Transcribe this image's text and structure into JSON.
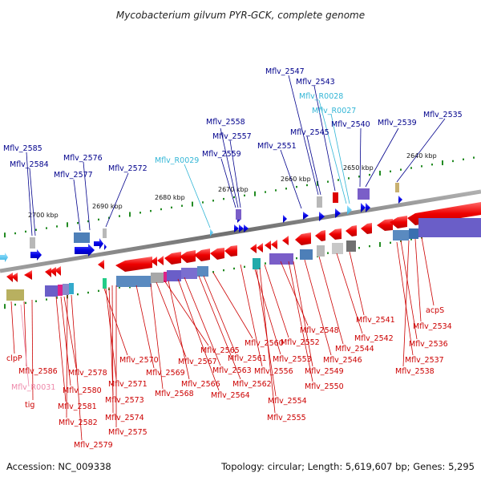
{
  "title": "Mycobacterium gilvum PYR-GCK, complete genome",
  "footer": {
    "accession": "Accession: NC_009338",
    "topology": "Topology: circular; Length: 5,619,607 bp; Genes: 5,295"
  },
  "scale_labels": [
    "2700 kbp",
    "2690 kbp",
    "2680 kbp",
    "2670 kbp",
    "2660 kbp",
    "2650 kbp",
    "2640 kbp"
  ],
  "forward_labels": [
    "Mflv_2585",
    "Mflv_2584",
    "Mflv_2576",
    "Mflv_2577",
    "Mflv_2572",
    "Mflv_R0029",
    "Mflv_2558",
    "Mflv_2557",
    "Mflv_2559",
    "Mflv_2547",
    "Mflv_2543",
    "Mflv_R0028",
    "Mflv_R0027",
    "Mflv_2551",
    "Mflv_2545",
    "Mflv_2540",
    "Mflv_2539",
    "Mflv_2535"
  ],
  "reverse_labels": [
    "clpP",
    "Mflv_2586",
    "Mflv_R0031",
    "tig",
    "Mflv_2578",
    "Mflv_2580",
    "Mflv_2581",
    "Mflv_2582",
    "Mflv_2579",
    "Mflv_2570",
    "Mflv_2571",
    "Mflv_2573",
    "Mflv_2574",
    "Mflv_2575",
    "Mflv_2569",
    "Mflv_2567",
    "Mflv_2568",
    "Mflv_2565",
    "Mflv_2566",
    "Mflv_2563",
    "Mflv_2564",
    "Mflv_2562",
    "Mflv_2561",
    "Mflv_2560",
    "Mflv_2556",
    "Mflv_2553",
    "Mflv_2554",
    "Mflv_2555",
    "Mflv_2552",
    "Mflv_2548",
    "Mflv_2549",
    "Mflv_2550",
    "Mflv_2546",
    "Mflv_2544",
    "Mflv_2542",
    "Mflv_2541",
    "Mflv_2536",
    "Mflv_2537",
    "Mflv_2538",
    "Mflv_2534",
    "acpS"
  ],
  "colors": {
    "forward_gene": "#0000e6",
    "reverse_gene": "#ee0000",
    "rna_gene": "#55c8ee",
    "forward_label": "#00008c",
    "reverse_label": "#cc0000",
    "backbone": "#808080",
    "tick": "#228b22"
  }
}
